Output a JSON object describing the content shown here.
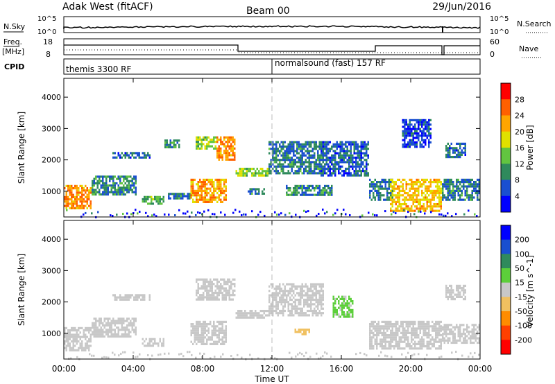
{
  "header": {
    "title": "Adak West (fitACF)",
    "beam": "Beam 00",
    "date": "29/Jun/2016"
  },
  "noise_panel": {
    "left_label": "N.Sky",
    "left_ticks": [
      "10^5",
      "10^0"
    ],
    "right_label": "N.Search",
    "right_ticks": [
      "10^5",
      "10^0"
    ]
  },
  "freq_panel": {
    "left_label_top": "Freq.",
    "left_label_bottom": "[MHz]",
    "left_ticks": [
      "18",
      "8"
    ],
    "right_label": "Nave",
    "right_ticks": [
      "60",
      "0"
    ]
  },
  "cpid_panel": {
    "label": "CPID",
    "programs": [
      {
        "name": "themis 3300 RF",
        "start_hour": 0
      },
      {
        "name": "normalsound (fast) 157 RF",
        "start_hour": 12
      }
    ]
  },
  "colors": {
    "power_scale": [
      "#0000ff",
      "#1a4fd0",
      "#2f8a5c",
      "#62c440",
      "#e0e000",
      "#ffa500",
      "#ff6000",
      "#ff0000"
    ],
    "velocity_scale": [
      "#ff0000",
      "#ff4000",
      "#ff8c00",
      "#f0c060",
      "#c8c8c8",
      "#5ccf3a",
      "#2f8a5c",
      "#1a4fd0",
      "#0000ff"
    ],
    "ground_scatter": "#c8c8c8"
  },
  "chart_data": [
    {
      "type": "heatmap",
      "name": "power",
      "ylabel": "Slant Range [km]",
      "yticks": [
        1000,
        2000,
        3000,
        4000
      ],
      "ylim": [
        180,
        4600
      ],
      "xlim": [
        0,
        24
      ],
      "xticks": [
        "00:00",
        "04:00",
        "08:00",
        "12:00",
        "16:00",
        "20:00",
        "00:00"
      ],
      "xticks_hours": [
        0,
        4,
        8,
        12,
        16,
        20,
        24
      ],
      "colorbar_label": "Power [dB]",
      "colorbar_ticks": [
        "4",
        "8",
        "12",
        "16",
        "20",
        "24",
        "28"
      ],
      "colorbar_range": [
        0,
        30
      ],
      "regions": [
        {
          "t0": 0.0,
          "t1": 1.6,
          "r0": 450,
          "r1": 1200,
          "level": 22
        },
        {
          "t0": 1.6,
          "t1": 4.2,
          "r0": 900,
          "r1": 1500,
          "level": 9
        },
        {
          "t0": 2.8,
          "t1": 5.0,
          "r0": 2050,
          "r1": 2250,
          "level": 6
        },
        {
          "t0": 4.5,
          "t1": 5.8,
          "r0": 600,
          "r1": 850,
          "level": 12
        },
        {
          "t0": 5.8,
          "t1": 6.7,
          "r0": 2400,
          "r1": 2650,
          "level": 10
        },
        {
          "t0": 6.0,
          "t1": 7.3,
          "r0": 750,
          "r1": 950,
          "level": 8
        },
        {
          "t0": 7.3,
          "t1": 9.4,
          "r0": 650,
          "r1": 1400,
          "level": 21
        },
        {
          "t0": 7.6,
          "t1": 8.8,
          "r0": 2350,
          "r1": 2750,
          "level": 14
        },
        {
          "t0": 8.8,
          "t1": 9.9,
          "r0": 2000,
          "r1": 2750,
          "level": 22
        },
        {
          "t0": 9.9,
          "t1": 11.8,
          "r0": 1500,
          "r1": 1750,
          "level": 14
        },
        {
          "t0": 10.6,
          "t1": 11.6,
          "r0": 950,
          "r1": 1100,
          "level": 8
        },
        {
          "t0": 11.8,
          "t1": 15.0,
          "r0": 1600,
          "r1": 2600,
          "level": 8
        },
        {
          "t0": 12.8,
          "t1": 15.4,
          "r0": 850,
          "r1": 1200,
          "level": 9
        },
        {
          "t0": 14.8,
          "t1": 17.6,
          "r0": 1500,
          "r1": 2600,
          "level": 6
        },
        {
          "t0": 17.6,
          "t1": 19.0,
          "r0": 700,
          "r1": 1400,
          "level": 8
        },
        {
          "t0": 18.8,
          "t1": 21.8,
          "r0": 400,
          "r1": 1400,
          "level": 19
        },
        {
          "t0": 19.5,
          "t1": 21.2,
          "r0": 2400,
          "r1": 3300,
          "level": 5
        },
        {
          "t0": 21.8,
          "t1": 24.0,
          "r0": 700,
          "r1": 1400,
          "level": 8
        },
        {
          "t0": 22.0,
          "t1": 23.2,
          "r0": 2100,
          "r1": 2550,
          "level": 7
        }
      ]
    },
    {
      "type": "heatmap",
      "name": "velocity",
      "ylabel": "Slant Range [km]",
      "yticks": [
        1000,
        2000,
        3000,
        4000
      ],
      "ylim": [
        180,
        4600
      ],
      "xlim": [
        0,
        24
      ],
      "xticks": [
        "00:00",
        "04:00",
        "08:00",
        "12:00",
        "16:00",
        "20:00",
        "00:00"
      ],
      "xticks_hours": [
        0,
        4,
        8,
        12,
        16,
        20,
        24
      ],
      "xlabel": "Time UT",
      "colorbar_label": "Velocity [m s^-1]",
      "colorbar_ticks": [
        "-200",
        "-100",
        "-50",
        "-15",
        "15",
        "50",
        "100",
        "200"
      ],
      "colorbar_range": [
        -250,
        250
      ],
      "regions": [
        {
          "t0": 0.0,
          "t1": 1.6,
          "r0": 450,
          "r1": 1200,
          "level": 0
        },
        {
          "t0": 1.6,
          "t1": 4.2,
          "r0": 900,
          "r1": 1500,
          "level": 0
        },
        {
          "t0": 2.8,
          "t1": 5.0,
          "r0": 2050,
          "r1": 2250,
          "level": 0
        },
        {
          "t0": 4.5,
          "t1": 5.8,
          "r0": 600,
          "r1": 850,
          "level": 0
        },
        {
          "t0": 7.3,
          "t1": 9.4,
          "r0": 650,
          "r1": 1400,
          "level": 0
        },
        {
          "t0": 7.6,
          "t1": 9.9,
          "r0": 2100,
          "r1": 2750,
          "level": 0
        },
        {
          "t0": 9.9,
          "t1": 11.8,
          "r0": 1500,
          "r1": 1750,
          "level": 0
        },
        {
          "t0": 11.8,
          "t1": 15.0,
          "r0": 1600,
          "r1": 2600,
          "level": 0
        },
        {
          "t0": 13.3,
          "t1": 14.2,
          "r0": 950,
          "r1": 1150,
          "level": -40
        },
        {
          "t0": 15.5,
          "t1": 16.6,
          "r0": 1500,
          "r1": 2200,
          "level": 30
        },
        {
          "t0": 17.6,
          "t1": 21.8,
          "r0": 500,
          "r1": 1400,
          "level": 0
        },
        {
          "t0": 21.8,
          "t1": 24.0,
          "r0": 700,
          "r1": 1300,
          "level": 0
        },
        {
          "t0": 22.0,
          "t1": 23.2,
          "r0": 2100,
          "r1": 2550,
          "level": 0
        }
      ]
    }
  ]
}
